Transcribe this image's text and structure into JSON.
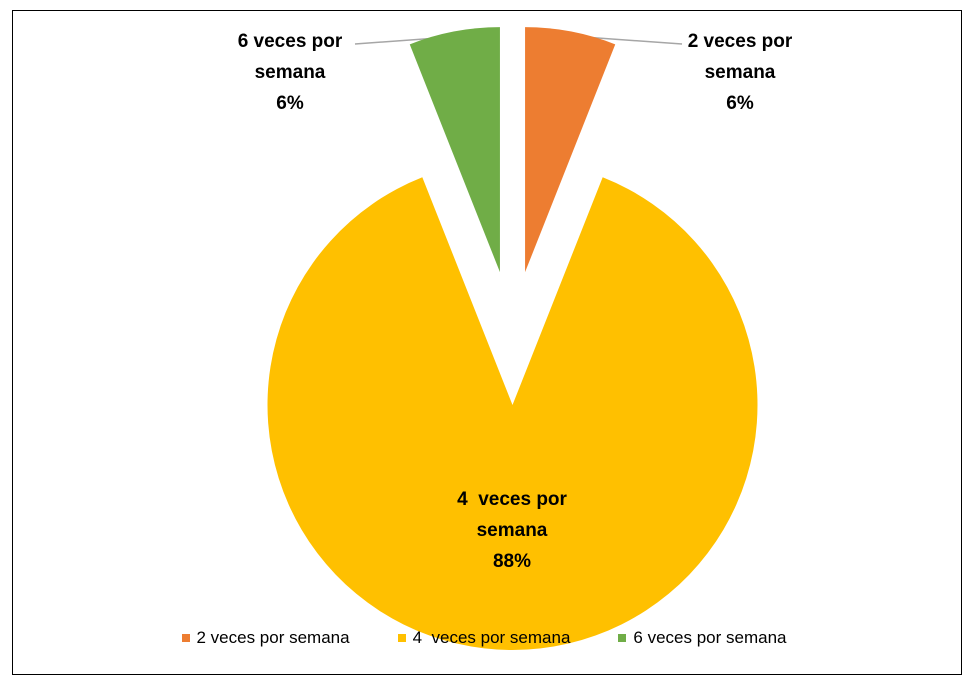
{
  "chart_data": {
    "type": "pie",
    "categories": [
      "2 veces por semana",
      "4  veces por semana",
      "6 veces por semana"
    ],
    "values": [
      6,
      88,
      6
    ],
    "value_labels": [
      "6%",
      "88%",
      "6%"
    ],
    "colors": [
      "#ed7d31",
      "#ffc000",
      "#70ad47"
    ],
    "legend": "bottom"
  }
}
